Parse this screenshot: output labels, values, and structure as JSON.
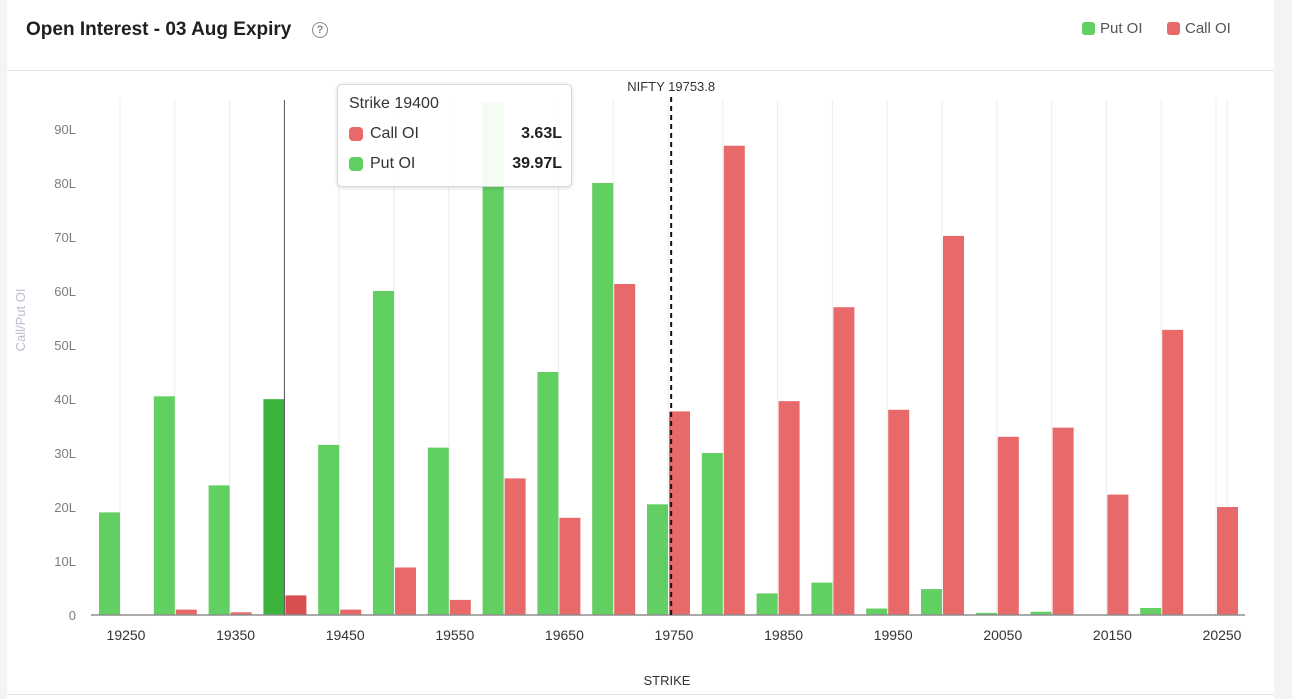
{
  "header": {
    "title": "Open Interest - 03 Aug Expiry",
    "help_icon": "?"
  },
  "legend": [
    {
      "label": "Put OI",
      "color": "#62cf62"
    },
    {
      "label": "Call OI",
      "color": "#e8696a"
    }
  ],
  "chart_data": {
    "type": "bar",
    "xlabel": "STRIKE",
    "ylabel": "Call/Put OI",
    "y_ticks": [
      "0",
      "10L",
      "20L",
      "30L",
      "40L",
      "50L",
      "60L",
      "70L",
      "80L",
      "90L"
    ],
    "ylim": [
      0,
      95
    ],
    "x_tick_labels": [
      "19250",
      "19350",
      "19450",
      "19550",
      "19650",
      "19750",
      "19850",
      "19950",
      "20050",
      "20150",
      "20250"
    ],
    "categories": [
      19250,
      19300,
      19350,
      19400,
      19450,
      19500,
      19550,
      19600,
      19650,
      19700,
      19750,
      19800,
      19850,
      19900,
      19950,
      20000,
      20050,
      20100,
      20150,
      20200,
      20250
    ],
    "series": [
      {
        "name": "Put OI",
        "color": "#62cf62",
        "values": [
          19,
          40.5,
          24,
          39.97,
          31.5,
          60,
          31,
          95,
          45,
          80,
          20.5,
          30,
          4,
          6,
          1.2,
          4.8,
          0.4,
          0.6,
          0.1,
          1.3,
          0.1
        ]
      },
      {
        "name": "Call OI",
        "color": "#e8696a",
        "values": [
          0,
          1,
          0.5,
          3.63,
          1,
          8.8,
          2.8,
          25.3,
          18,
          61.3,
          37.7,
          86.9,
          39.6,
          57,
          38,
          70.2,
          33,
          34.7,
          22.3,
          52.8,
          20
        ]
      }
    ],
    "spot": {
      "label": "NIFTY 19753.8",
      "value": 19753.8
    },
    "highlighted_strike": 19400,
    "grid": true
  },
  "tooltip": {
    "title": "Strike 19400",
    "rows": [
      {
        "label": "Call OI",
        "value": "3.63L",
        "color": "#e8696a"
      },
      {
        "label": "Put OI",
        "value": "39.97L",
        "color": "#62cf62"
      }
    ]
  }
}
